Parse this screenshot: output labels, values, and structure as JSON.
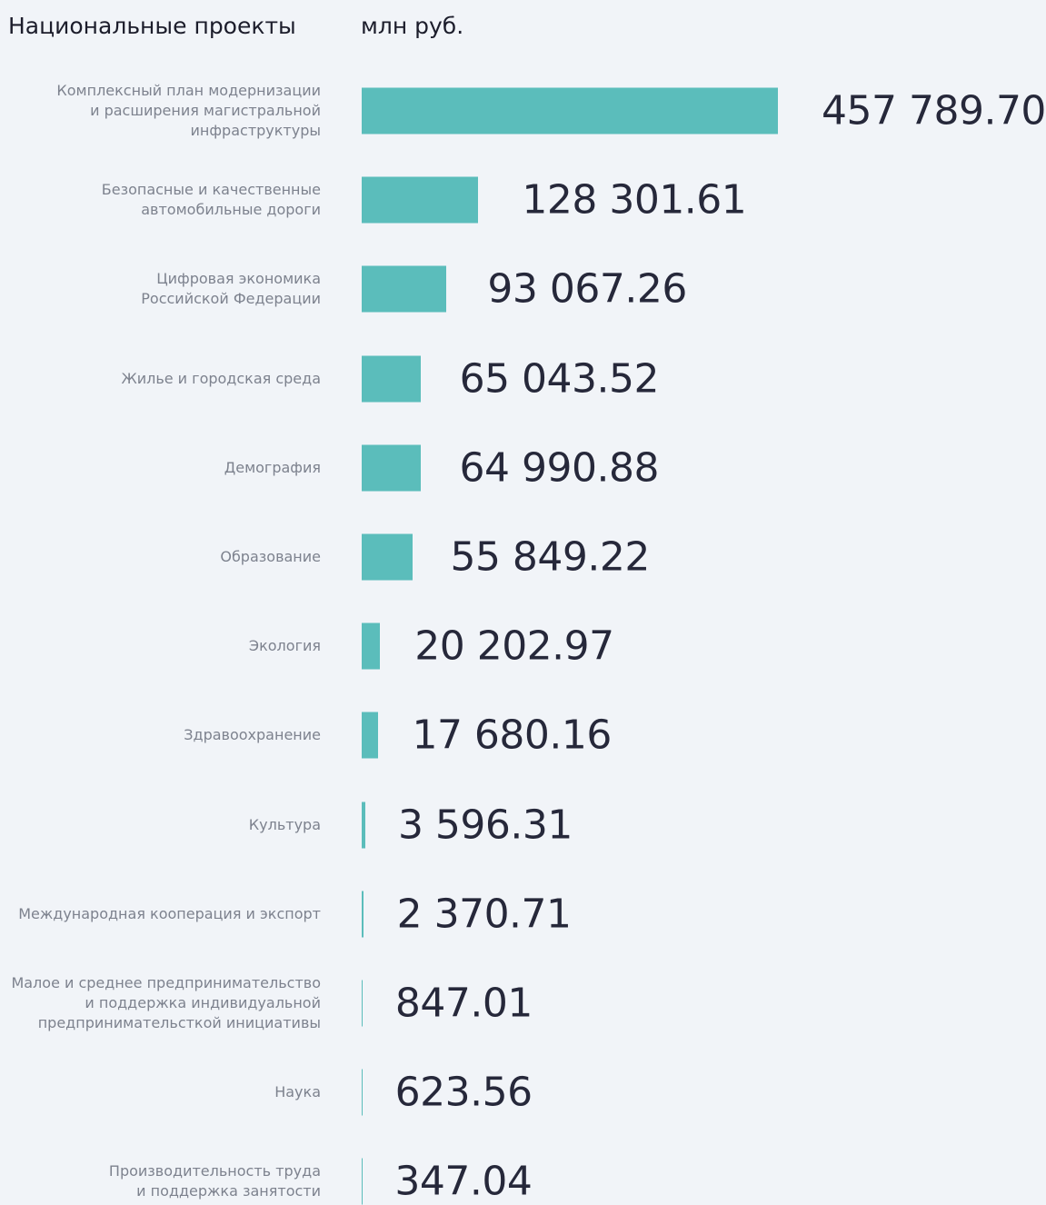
{
  "chart_data": {
    "type": "bar",
    "orientation": "horizontal",
    "title": "Национальные проекты",
    "value_axis_label": "млн руб.",
    "color": "#5bbdbb",
    "categories": [
      "Комплексный план модернизации\nи расширения магистральной\nинфраструктуры",
      "Безопасные и качественные\nавтомобильные дороги",
      "Цифровая экономика\nРоссийской Федерации",
      "Жилье и городская среда",
      "Демография",
      "Образование",
      "Экология",
      "Здравоохранение",
      "Культура",
      "Международная кооперация и экспорт",
      "Малое и среднее предпринимательство\nи поддержка индивидуальной\nпредпринимательсткой инициативы",
      "Наука",
      "Производительность труда\nи поддержка занятости"
    ],
    "values": [
      457789.7,
      128301.61,
      93067.26,
      65043.52,
      64990.88,
      55849.22,
      20202.97,
      17680.16,
      3596.31,
      2370.71,
      847.01,
      623.56,
      347.04
    ],
    "value_labels": [
      "457 789.70",
      "128 301.61",
      "93 067.26",
      "65 043.52",
      "64 990.88",
      "55 849.22",
      "20 202.97",
      "17 680.16",
      "3 596.31",
      "2 370.71",
      "847.01",
      "623.56",
      "347.04"
    ]
  }
}
